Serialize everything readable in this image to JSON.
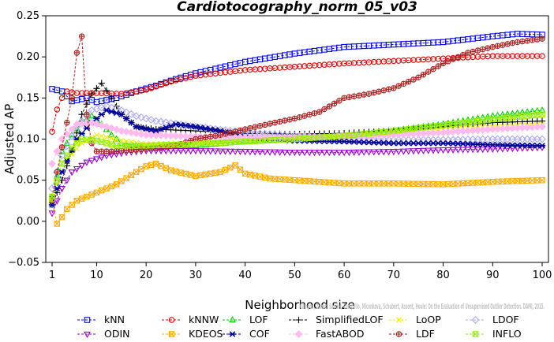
{
  "chart_data": {
    "type": "line",
    "title": "Cardiotocography_norm_05_v03",
    "xlabel": "Neighborhood size",
    "ylabel": "Adjusted AP",
    "xlim": [
      1,
      100
    ],
    "ylim": [
      -0.05,
      0.25
    ],
    "x_ticks": [
      1,
      10,
      20,
      30,
      40,
      50,
      60,
      70,
      80,
      90,
      100
    ],
    "y_ticks": [
      -0.05,
      0.0,
      0.05,
      0.1,
      0.15,
      0.2,
      0.25
    ],
    "y_tick_labels": [
      "−0.05",
      "0.00",
      "0.05",
      "0.10",
      "0.15",
      "0.20",
      "0.25"
    ],
    "grid": false,
    "legend_position": "bottom",
    "credit": "Campos, Zimek, Sander, Campello, Micenkova, Schubert, Assent, Houle: On the Evaluation of Unsupervised Outlier Detection. DAMI, 2015.",
    "series": [
      {
        "name": "kNN",
        "color": "#0000ee",
        "marker": "square",
        "dashed": true,
        "anchors": [
          [
            1,
            0.161
          ],
          [
            3,
            0.158
          ],
          [
            5,
            0.146
          ],
          [
            8,
            0.15
          ],
          [
            10,
            0.145
          ],
          [
            14,
            0.15
          ],
          [
            18,
            0.158
          ],
          [
            22,
            0.165
          ],
          [
            26,
            0.173
          ],
          [
            30,
            0.18
          ],
          [
            40,
            0.194
          ],
          [
            50,
            0.204
          ],
          [
            60,
            0.212
          ],
          [
            70,
            0.215
          ],
          [
            80,
            0.218
          ],
          [
            90,
            0.225
          ],
          [
            95,
            0.228
          ],
          [
            100,
            0.227
          ]
        ]
      },
      {
        "name": "kNNW",
        "color": "#dd0000",
        "marker": "circle",
        "dashed": true,
        "anchors": [
          [
            1,
            0.109
          ],
          [
            2,
            0.136
          ],
          [
            3,
            0.15
          ],
          [
            4,
            0.158
          ],
          [
            6,
            0.156
          ],
          [
            10,
            0.156
          ],
          [
            15,
            0.155
          ],
          [
            20,
            0.16
          ],
          [
            25,
            0.17
          ],
          [
            30,
            0.177
          ],
          [
            40,
            0.184
          ],
          [
            50,
            0.188
          ],
          [
            60,
            0.192
          ],
          [
            70,
            0.195
          ],
          [
            80,
            0.198
          ],
          [
            90,
            0.201
          ],
          [
            100,
            0.201
          ]
        ]
      },
      {
        "name": "LOF",
        "color": "#00cc00",
        "marker": "triangle-up",
        "dashed": true,
        "anchors": [
          [
            1,
            0.025
          ],
          [
            3,
            0.085
          ],
          [
            5,
            0.105
          ],
          [
            7,
            0.12
          ],
          [
            9,
            0.128
          ],
          [
            11,
            0.118
          ],
          [
            13,
            0.105
          ],
          [
            15,
            0.095
          ],
          [
            20,
            0.09
          ],
          [
            30,
            0.092
          ],
          [
            40,
            0.097
          ],
          [
            50,
            0.1
          ],
          [
            60,
            0.103
          ],
          [
            70,
            0.11
          ],
          [
            80,
            0.118
          ],
          [
            90,
            0.128
          ],
          [
            100,
            0.135
          ]
        ]
      },
      {
        "name": "SimplifiedLOF",
        "color": "#000000",
        "marker": "plus",
        "dashed": true,
        "anchors": [
          [
            1,
            0.02
          ],
          [
            3,
            0.05
          ],
          [
            5,
            0.085
          ],
          [
            7,
            0.13
          ],
          [
            9,
            0.155
          ],
          [
            11,
            0.168
          ],
          [
            13,
            0.15
          ],
          [
            15,
            0.13
          ],
          [
            18,
            0.115
          ],
          [
            22,
            0.112
          ],
          [
            30,
            0.11
          ],
          [
            40,
            0.107
          ],
          [
            50,
            0.106
          ],
          [
            60,
            0.107
          ],
          [
            70,
            0.11
          ],
          [
            80,
            0.115
          ],
          [
            90,
            0.12
          ],
          [
            100,
            0.122
          ]
        ]
      },
      {
        "name": "LoOP",
        "color": "#eeee00",
        "marker": "x",
        "dashed": true,
        "anchors": [
          [
            1,
            0.03
          ],
          [
            4,
            0.075
          ],
          [
            7,
            0.095
          ],
          [
            10,
            0.105
          ],
          [
            15,
            0.098
          ],
          [
            20,
            0.094
          ],
          [
            30,
            0.095
          ],
          [
            40,
            0.097
          ],
          [
            50,
            0.1
          ],
          [
            60,
            0.104
          ],
          [
            70,
            0.108
          ],
          [
            80,
            0.112
          ],
          [
            90,
            0.115
          ],
          [
            100,
            0.118
          ]
        ]
      },
      {
        "name": "LDOF",
        "color": "#aaaaee",
        "marker": "diamond",
        "dashed": true,
        "anchors": [
          [
            1,
            0.04
          ],
          [
            3,
            0.08
          ],
          [
            6,
            0.115
          ],
          [
            9,
            0.135
          ],
          [
            12,
            0.14
          ],
          [
            15,
            0.135
          ],
          [
            18,
            0.128
          ],
          [
            22,
            0.122
          ],
          [
            30,
            0.115
          ],
          [
            40,
            0.108
          ],
          [
            50,
            0.104
          ],
          [
            60,
            0.101
          ],
          [
            70,
            0.099
          ],
          [
            80,
            0.099
          ],
          [
            90,
            0.1
          ],
          [
            100,
            0.1
          ]
        ]
      },
      {
        "name": "ODIN",
        "color": "#9900cc",
        "marker": "triangle-down",
        "dashed": true,
        "anchors": [
          [
            1,
            0.01
          ],
          [
            3,
            0.04
          ],
          [
            5,
            0.06
          ],
          [
            8,
            0.072
          ],
          [
            12,
            0.08
          ],
          [
            16,
            0.084
          ],
          [
            20,
            0.086
          ],
          [
            30,
            0.086
          ],
          [
            40,
            0.085
          ],
          [
            50,
            0.084
          ],
          [
            60,
            0.084
          ],
          [
            70,
            0.085
          ],
          [
            80,
            0.087
          ],
          [
            90,
            0.088
          ],
          [
            100,
            0.09
          ]
        ]
      },
      {
        "name": "KDEOS",
        "color": "#ffaa00",
        "marker": "square-x",
        "dashed": true,
        "anchors": [
          [
            1,
            0.025
          ],
          [
            2,
            -0.003
          ],
          [
            3,
            0.005
          ],
          [
            4,
            0.015
          ],
          [
            6,
            0.025
          ],
          [
            8,
            0.03
          ],
          [
            10,
            0.035
          ],
          [
            14,
            0.045
          ],
          [
            18,
            0.06
          ],
          [
            20,
            0.067
          ],
          [
            22,
            0.07
          ],
          [
            25,
            0.062
          ],
          [
            30,
            0.055
          ],
          [
            35,
            0.06
          ],
          [
            38,
            0.068
          ],
          [
            40,
            0.058
          ],
          [
            45,
            0.052
          ],
          [
            50,
            0.05
          ],
          [
            60,
            0.046
          ],
          [
            70,
            0.046
          ],
          [
            80,
            0.045
          ],
          [
            90,
            0.048
          ],
          [
            100,
            0.05
          ]
        ]
      },
      {
        "name": "COF",
        "color": "#000099",
        "marker": "star",
        "dashed": true,
        "anchors": [
          [
            1,
            0.02
          ],
          [
            3,
            0.06
          ],
          [
            6,
            0.1
          ],
          [
            9,
            0.12
          ],
          [
            12,
            0.135
          ],
          [
            15,
            0.13
          ],
          [
            18,
            0.115
          ],
          [
            22,
            0.11
          ],
          [
            26,
            0.118
          ],
          [
            30,
            0.115
          ],
          [
            35,
            0.11
          ],
          [
            40,
            0.102
          ],
          [
            45,
            0.1
          ],
          [
            50,
            0.098
          ],
          [
            60,
            0.097
          ],
          [
            70,
            0.095
          ],
          [
            80,
            0.095
          ],
          [
            90,
            0.093
          ],
          [
            100,
            0.092
          ]
        ]
      },
      {
        "name": "FastABOD",
        "color": "#ffbbee",
        "marker": "diamond-filled",
        "dashed": true,
        "anchors": [
          [
            1,
            0.07
          ],
          [
            3,
            0.1
          ],
          [
            6,
            0.118
          ],
          [
            9,
            0.12
          ],
          [
            12,
            0.115
          ],
          [
            15,
            0.11
          ],
          [
            20,
            0.105
          ],
          [
            30,
            0.103
          ],
          [
            40,
            0.102
          ],
          [
            50,
            0.102
          ],
          [
            60,
            0.103
          ],
          [
            70,
            0.105
          ],
          [
            80,
            0.108
          ],
          [
            90,
            0.112
          ],
          [
            100,
            0.115
          ]
        ]
      },
      {
        "name": "LDF",
        "color": "#aa2222",
        "marker": "circle-plus",
        "dashed": true,
        "anchors": [
          [
            1,
            0.03
          ],
          [
            2,
            0.06
          ],
          [
            3,
            0.09
          ],
          [
            5,
            0.15
          ],
          [
            6,
            0.205
          ],
          [
            7,
            0.225
          ],
          [
            8,
            0.13
          ],
          [
            9,
            0.095
          ],
          [
            10,
            0.085
          ],
          [
            13,
            0.085
          ],
          [
            20,
            0.088
          ],
          [
            26,
            0.092
          ],
          [
            30,
            0.1
          ],
          [
            35,
            0.105
          ],
          [
            40,
            0.112
          ],
          [
            46,
            0.12
          ],
          [
            50,
            0.125
          ],
          [
            55,
            0.133
          ],
          [
            60,
            0.15
          ],
          [
            65,
            0.155
          ],
          [
            70,
            0.162
          ],
          [
            75,
            0.175
          ],
          [
            80,
            0.192
          ],
          [
            85,
            0.205
          ],
          [
            90,
            0.212
          ],
          [
            95,
            0.218
          ],
          [
            100,
            0.222
          ]
        ]
      },
      {
        "name": "INFLO",
        "color": "#99ee00",
        "marker": "square-x",
        "dashed": true,
        "anchors": [
          [
            1,
            0.03
          ],
          [
            3,
            0.07
          ],
          [
            5,
            0.09
          ],
          [
            7,
            0.1
          ],
          [
            10,
            0.098
          ],
          [
            14,
            0.092
          ],
          [
            20,
            0.092
          ],
          [
            30,
            0.094
          ],
          [
            40,
            0.097
          ],
          [
            50,
            0.1
          ],
          [
            60,
            0.104
          ],
          [
            70,
            0.11
          ],
          [
            80,
            0.117
          ],
          [
            90,
            0.124
          ],
          [
            100,
            0.13
          ]
        ]
      }
    ]
  }
}
